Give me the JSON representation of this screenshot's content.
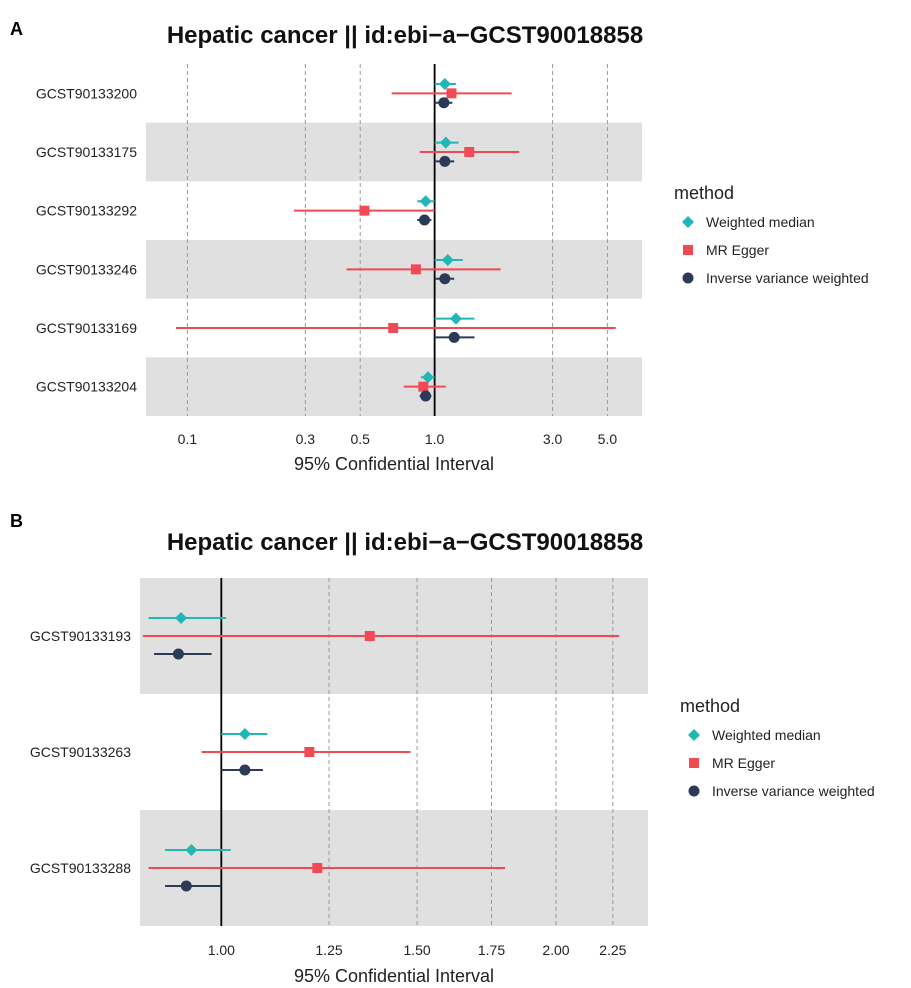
{
  "chart_data": [
    {
      "type": "forest",
      "panel_label": "A",
      "title": "Hepatic cancer || id:ebi−a−GCST90018858",
      "xlabel": "95% Confidential Interval",
      "x_scale": "log",
      "xlim": [
        0.068,
        6.9
      ],
      "reference_line": 1.0,
      "xticks": [
        0.1,
        0.3,
        0.5,
        1.0,
        3.0,
        5.0
      ],
      "xtick_labels": [
        "0.1",
        "0.3",
        "0.5",
        "1.0",
        "3.0",
        "5.0"
      ],
      "grid": "vertical dashed",
      "categories": [
        "GCST90133200",
        "GCST90133175",
        "GCST90133292",
        "GCST90133246",
        "GCST90133169",
        "GCST90133204"
      ],
      "shaded_rows": [
        1,
        3,
        5
      ],
      "series": [
        {
          "name": "Weighted median",
          "color": "#20B7B5",
          "marker": "diamond",
          "values": [
            1.1,
            1.11,
            0.92,
            1.13,
            1.22,
            0.94
          ],
          "ci": [
            [
              1.0,
              1.22
            ],
            [
              1.0,
              1.25
            ],
            [
              0.85,
              1.0
            ],
            [
              1.0,
              1.3
            ],
            [
              1.0,
              1.45
            ],
            [
              0.88,
              1.0
            ]
          ]
        },
        {
          "name": "MR Egger",
          "color": "#F24A55",
          "marker": "square",
          "values": [
            1.17,
            1.38,
            0.52,
            0.84,
            0.68,
            0.9
          ],
          "ci": [
            [
              0.67,
              2.05
            ],
            [
              0.87,
              2.2
            ],
            [
              0.27,
              1.0
            ],
            [
              0.44,
              1.85
            ],
            [
              0.09,
              5.4
            ],
            [
              0.75,
              1.11
            ]
          ]
        },
        {
          "name": "Inverse variance weighted",
          "color": "#2C3A57",
          "marker": "circle",
          "values": [
            1.09,
            1.1,
            0.91,
            1.1,
            1.2,
            0.92
          ],
          "ci": [
            [
              1.0,
              1.18
            ],
            [
              1.0,
              1.2
            ],
            [
              0.85,
              0.97
            ],
            [
              1.0,
              1.2
            ],
            [
              1.0,
              1.45
            ],
            [
              0.87,
              0.97
            ]
          ]
        }
      ],
      "legend": {
        "title": "method",
        "position": "right"
      }
    },
    {
      "type": "forest",
      "panel_label": "B",
      "title": "Hepatic cancer || id:ebi−a−GCST90018858",
      "xlabel": "95% Confidential Interval",
      "x_scale": "log",
      "xlim": [
        0.845,
        2.42
      ],
      "reference_line": 1.0,
      "xticks": [
        1.0,
        1.25,
        1.5,
        1.75,
        2.0,
        2.25
      ],
      "xtick_labels": [
        "1.00",
        "1.25",
        "1.50",
        "1.75",
        "2.00",
        "2.25"
      ],
      "grid": "vertical dashed",
      "categories": [
        "GCST90133193",
        "GCST90133263",
        "GCST90133288"
      ],
      "shaded_rows": [
        0,
        2
      ],
      "series": [
        {
          "name": "Weighted median",
          "color": "#20B7B5",
          "marker": "diamond",
          "values": [
            0.92,
            1.05,
            0.94
          ],
          "ci": [
            [
              0.86,
              1.01
            ],
            [
              1.0,
              1.1
            ],
            [
              0.89,
              1.02
            ]
          ]
        },
        {
          "name": "MR Egger",
          "color": "#F24A55",
          "marker": "square",
          "values": [
            1.36,
            1.2,
            1.22
          ],
          "ci": [
            [
              0.85,
              2.28
            ],
            [
              0.96,
              1.48
            ],
            [
              0.86,
              1.8
            ]
          ]
        },
        {
          "name": "Inverse variance weighted",
          "color": "#2C3A57",
          "marker": "circle",
          "values": [
            0.915,
            1.05,
            0.93
          ],
          "ci": [
            [
              0.87,
              0.98
            ],
            [
              1.0,
              1.09
            ],
            [
              0.89,
              1.0
            ]
          ]
        }
      ],
      "legend": {
        "title": "method",
        "position": "right"
      }
    }
  ]
}
